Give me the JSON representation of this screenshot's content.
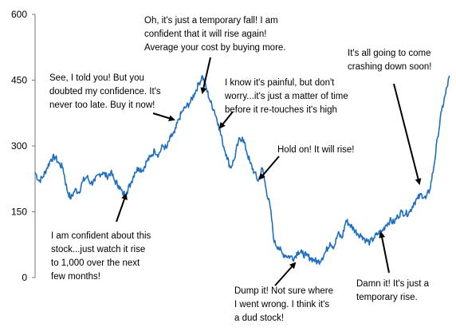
{
  "chart_data": {
    "type": "line",
    "title": "",
    "xlabel": "",
    "ylabel": "",
    "ylim": [
      0,
      600
    ],
    "yticks": [
      "0",
      "150",
      "300",
      "450",
      "600"
    ],
    "grid": false,
    "legend": "none",
    "series_color": "#1f6fbf",
    "series": [
      {
        "x": [
          0,
          5,
          10,
          15,
          20,
          25,
          30,
          35,
          40,
          45,
          50,
          55,
          60,
          65,
          70,
          75,
          80,
          85,
          90,
          95,
          100,
          105,
          110,
          115,
          120,
          125,
          130,
          135,
          140,
          145,
          150,
          155,
          160,
          165,
          170,
          175,
          180,
          185,
          190,
          195,
          200,
          205,
          210,
          215,
          220,
          225,
          230,
          235,
          240,
          245,
          250,
          255,
          260,
          265,
          270,
          275,
          280,
          285,
          290,
          295,
          300,
          305,
          310,
          315,
          320,
          325,
          330,
          335,
          340,
          345,
          350,
          355,
          360,
          365,
          370,
          375,
          380,
          385,
          390,
          395,
          400,
          405,
          410,
          415,
          420,
          425,
          430,
          435,
          440,
          445,
          450,
          455,
          460,
          465,
          470,
          475,
          480,
          485,
          490,
          495,
          500,
          505,
          510,
          515,
          520
        ],
        "values": [
          240,
          220,
          230,
          250,
          270,
          275,
          260,
          250,
          200,
          180,
          200,
          195,
          220,
          230,
          215,
          220,
          235,
          240,
          230,
          240,
          220,
          210,
          190,
          195,
          215,
          240,
          250,
          245,
          265,
          275,
          290,
          280,
          300,
          295,
          320,
          330,
          360,
          380,
          390,
          400,
          420,
          440,
          460,
          430,
          400,
          380,
          350,
          310,
          280,
          250,
          270,
          310,
          320,
          290,
          260,
          240,
          220,
          250,
          200,
          160,
          80,
          70,
          55,
          50,
          48,
          45,
          60,
          55,
          50,
          45,
          40,
          35,
          45,
          60,
          80,
          70,
          100,
          90,
          130,
          120,
          110,
          100,
          95,
          85,
          80,
          90,
          100,
          105,
          120,
          130,
          125,
          140,
          150,
          145,
          150,
          170,
          180,
          190,
          180,
          200,
          250,
          320,
          380,
          420,
          460
        ]
      }
    ],
    "annotations": [
      {
        "lines": [
          "See, I told you! But you",
          "doubted my confidence. It's",
          "never too late. Buy it now!"
        ]
      },
      {
        "lines": [
          "Oh, it's just a temporary fall! I am",
          "confident that it will rise again!",
          "Average your cost by buying more."
        ]
      },
      {
        "lines": [
          "I know it's painful, but don't",
          "worry...it's just a matter of time",
          "before it re-touches it's high"
        ]
      },
      {
        "lines": [
          "Hold on! It will rise!"
        ]
      },
      {
        "lines": [
          "It's all going to come",
          "crashing down soon!"
        ]
      },
      {
        "lines": [
          "I am confident about this",
          "stock...just watch it  rise",
          "to 1,000 over the next",
          "few months!"
        ]
      },
      {
        "lines": [
          "Dump it! Not sure where",
          "I went wrong. I think it's",
          "a dud stock!"
        ]
      },
      {
        "lines": [
          "Damn it! It's just a",
          "temporary rise."
        ]
      }
    ]
  }
}
